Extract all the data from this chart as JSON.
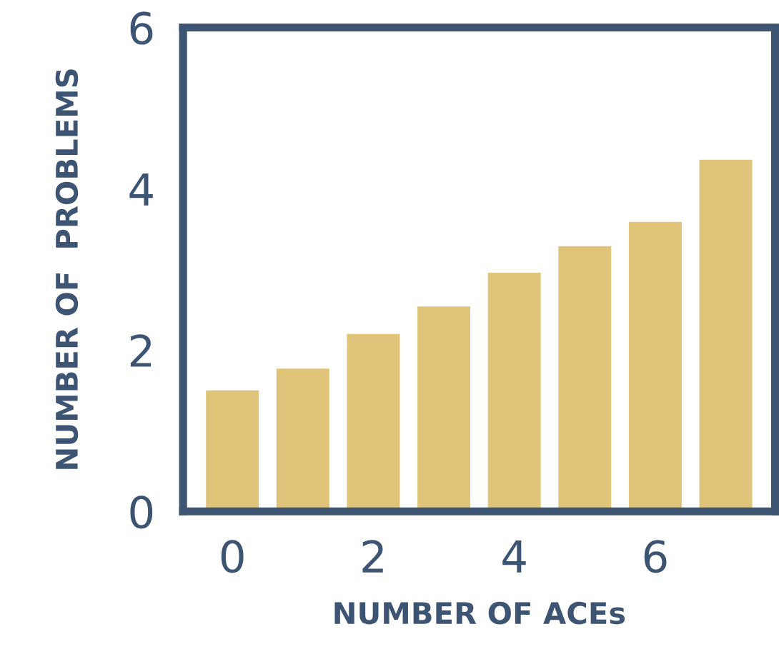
{
  "chart_data": {
    "type": "bar",
    "xlabel": "NUMBER OF ACEs",
    "ylabel": "NUMBER OF  PROBLEMS",
    "x": [
      0,
      1,
      2,
      3,
      4,
      5,
      6,
      7
    ],
    "values": [
      1.5,
      1.77,
      2.2,
      2.54,
      2.96,
      3.29,
      3.59,
      4.36
    ],
    "color": "#e0c47a",
    "xlim": [
      -0.7,
      7.7
    ],
    "xticks": [
      0,
      2,
      4,
      6
    ],
    "ylim": [
      0,
      6
    ],
    "yticks": [
      0,
      2,
      4,
      6
    ],
    "grid": false
  }
}
